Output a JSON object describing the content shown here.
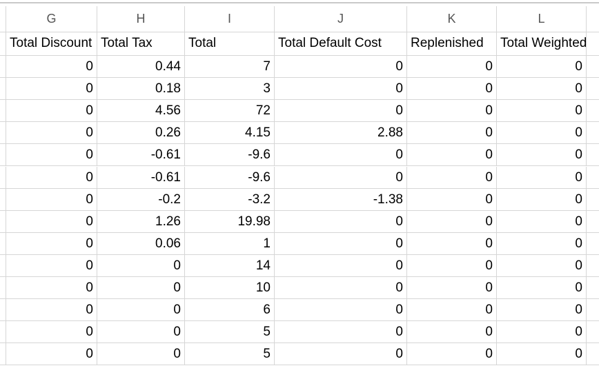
{
  "column_letters": [
    "G",
    "H",
    "I",
    "J",
    "K",
    "L"
  ],
  "table": {
    "header": [
      "Total Discount",
      "Total Tax",
      "Total",
      "Total Default Cost",
      "Replenished",
      "Total Weighted"
    ],
    "rows": [
      [
        0,
        0.44,
        7,
        0,
        0,
        0
      ],
      [
        0,
        0.18,
        3,
        0,
        0,
        0
      ],
      [
        0,
        4.56,
        72,
        0,
        0,
        0
      ],
      [
        0,
        0.26,
        4.15,
        2.88,
        0,
        0
      ],
      [
        0,
        -0.61,
        -9.6,
        0,
        0,
        0
      ],
      [
        0,
        -0.61,
        -9.6,
        0,
        0,
        0
      ],
      [
        0,
        -0.2,
        -3.2,
        -1.38,
        0,
        0
      ],
      [
        0,
        1.26,
        19.98,
        0,
        0,
        0
      ],
      [
        0,
        0.06,
        1,
        0,
        0,
        0
      ],
      [
        0,
        0,
        14,
        0,
        0,
        0
      ],
      [
        0,
        0,
        10,
        0,
        0,
        0
      ],
      [
        0,
        0,
        6,
        0,
        0,
        0
      ],
      [
        0,
        0,
        5,
        0,
        0,
        0
      ],
      [
        0,
        0,
        5,
        0,
        0,
        0
      ]
    ]
  }
}
